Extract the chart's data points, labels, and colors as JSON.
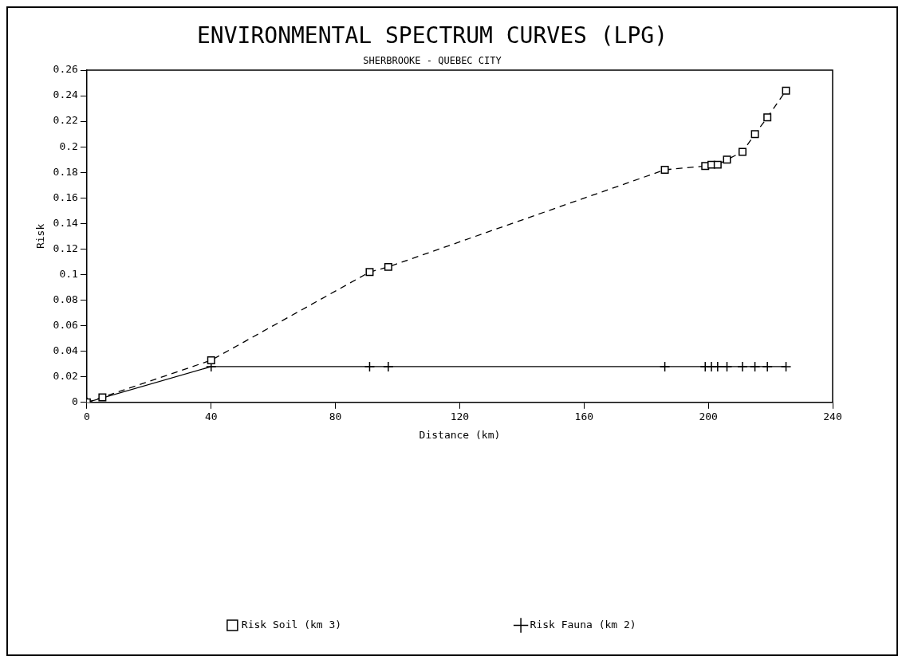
{
  "chart_data": {
    "type": "line",
    "title": "ENVIRONMENTAL SPECTRUM CURVES (LPG)",
    "subtitle": "SHERBROOKE - QUEBEC CITY",
    "xlabel": "Distance (km)",
    "ylabel": "Risk",
    "x": [
      0,
      5,
      40,
      91,
      97,
      186,
      199,
      201,
      203,
      206,
      211,
      215,
      219,
      225
    ],
    "series": [
      {
        "name": "Risk Soil (km 3)",
        "color": "#000000",
        "marker": "square",
        "line_style": "dashed",
        "values": [
          0,
          0.004,
          0.033,
          0.102,
          0.106,
          0.182,
          0.185,
          0.186,
          0.186,
          0.19,
          0.196,
          0.21,
          0.223,
          0.244
        ]
      },
      {
        "name": "Risk Fauna (km 2)",
        "color": "#000000",
        "marker": "cross",
        "line_style": "solid",
        "values": [
          0,
          null,
          0.028,
          0.028,
          0.028,
          0.028,
          0.028,
          0.028,
          0.028,
          0.028,
          0.028,
          0.028,
          0.028,
          0.028
        ]
      }
    ],
    "xlim": [
      0,
      240
    ],
    "xticks": [
      0,
      40,
      80,
      120,
      160,
      200,
      240
    ],
    "ylim": [
      0,
      0.26
    ],
    "yticks": [
      0,
      0.02,
      0.04,
      0.06,
      0.08,
      0.1,
      0.12,
      0.14,
      0.16,
      0.18,
      0.2,
      0.22,
      0.24,
      0.26
    ],
    "grid": false,
    "legend": "bottom"
  }
}
